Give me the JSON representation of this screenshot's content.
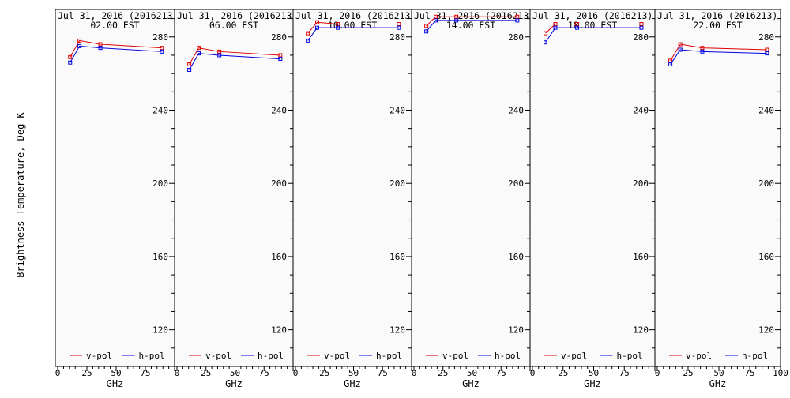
{
  "chart_data": {
    "type": "line",
    "ylabel": "Brightness Temperature, Deg K",
    "xlabel": "GHz",
    "xlim": [
      0,
      100
    ],
    "ylim": [
      100,
      295
    ],
    "xticks": [
      0,
      25,
      50,
      75,
      100
    ],
    "yticks": [
      120,
      160,
      200,
      240,
      280
    ],
    "legend_placement": "bottom",
    "grid": false,
    "series_colors": {
      "v-pol": "#e00000",
      "h-pol": "#0000e0"
    },
    "series_names": [
      "v-pol",
      "h-pol"
    ],
    "panels": [
      {
        "title": "Jul 31, 2016 (2016213)",
        "subtitle": "02.00 EST",
        "series": [
          {
            "name": "v-pol",
            "x": [
              10.65,
              18.7,
              36.5,
              89.0
            ],
            "y": [
              269,
              278,
              276,
              274
            ]
          },
          {
            "name": "h-pol",
            "x": [
              10.65,
              18.7,
              36.5,
              89.0
            ],
            "y": [
              266,
              275,
              274,
              272
            ]
          }
        ]
      },
      {
        "title": "Jul 31, 2016 (2016213)",
        "subtitle": "06.00 EST",
        "series": [
          {
            "name": "v-pol",
            "x": [
              10.65,
              18.7,
              36.5,
              89.0
            ],
            "y": [
              265,
              274,
              272,
              270
            ]
          },
          {
            "name": "h-pol",
            "x": [
              10.65,
              18.7,
              36.5,
              89.0
            ],
            "y": [
              262,
              271,
              270,
              268
            ]
          }
        ]
      },
      {
        "title": "Jul 31, 2016 (2016213)",
        "subtitle": "10.00 EST",
        "series": [
          {
            "name": "v-pol",
            "x": [
              10.65,
              18.7,
              36.5,
              89.0
            ],
            "y": [
              282,
              288,
              287,
              287
            ]
          },
          {
            "name": "h-pol",
            "x": [
              10.65,
              18.7,
              36.5,
              89.0
            ],
            "y": [
              278,
              285,
              285,
              285
            ]
          }
        ]
      },
      {
        "title": "Jul 31, 2016 (2016213)",
        "subtitle": "14.00 EST",
        "series": [
          {
            "name": "v-pol",
            "x": [
              10.65,
              18.7,
              36.5,
              89.0
            ],
            "y": [
              286,
              291,
              291,
              291
            ]
          },
          {
            "name": "h-pol",
            "x": [
              10.65,
              18.7,
              36.5,
              89.0
            ],
            "y": [
              283,
              289,
              289,
              289
            ]
          }
        ]
      },
      {
        "title": "Jul 31, 2016 (2016213)",
        "subtitle": "18.00 EST",
        "series": [
          {
            "name": "v-pol",
            "x": [
              10.65,
              18.7,
              36.5,
              89.0
            ],
            "y": [
              282,
              287,
              287,
              287
            ]
          },
          {
            "name": "h-pol",
            "x": [
              10.65,
              18.7,
              36.5,
              89.0
            ],
            "y": [
              277,
              285,
              285,
              285
            ]
          }
        ]
      },
      {
        "title": "Jul 31, 2016 (2016213)",
        "subtitle": "22.00 EST",
        "series": [
          {
            "name": "v-pol",
            "x": [
              10.65,
              18.7,
              36.5,
              89.0
            ],
            "y": [
              267,
              276,
              274,
              273
            ]
          },
          {
            "name": "h-pol",
            "x": [
              10.65,
              18.7,
              36.5,
              89.0
            ],
            "y": [
              265,
              273,
              272,
              271
            ]
          }
        ]
      }
    ]
  }
}
